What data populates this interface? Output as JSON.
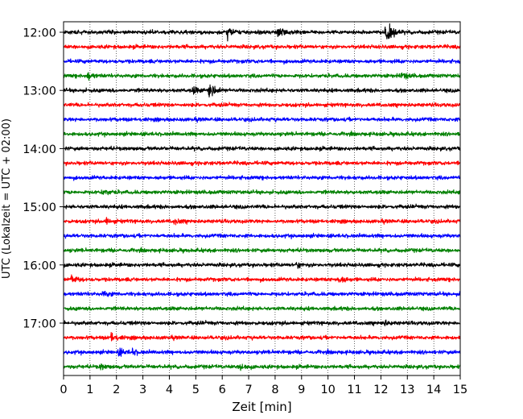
{
  "chart_data": {
    "type": "line",
    "title": "",
    "xlabel": "Zeit  [min]",
    "ylabel": "UTC (Lokalzeit = UTC + 02:00)",
    "xlim": [
      0,
      15
    ],
    "x_ticks": [
      0,
      1,
      2,
      3,
      4,
      5,
      6,
      7,
      8,
      9,
      10,
      11,
      12,
      13,
      14,
      15
    ],
    "x_tick_labels": [
      "0",
      "1",
      "2",
      "3",
      "4",
      "5",
      "6",
      "7",
      "8",
      "9",
      "10",
      "11",
      "12",
      "13",
      "14",
      "15"
    ],
    "y_tick_labels": [
      "12:00",
      "13:00",
      "14:00",
      "15:00",
      "16:00",
      "17:00"
    ],
    "y_tick_traces": [
      0,
      4,
      8,
      12,
      16,
      20
    ],
    "trace_minutes": 15,
    "grid_x": true,
    "grid_style": "dotted",
    "colors": [
      "#000000",
      "#ff0000",
      "#0000ff",
      "#008000"
    ],
    "series": [
      {
        "start": "12:00",
        "events": [
          {
            "t": 6.2,
            "amp": 7
          },
          {
            "t": 8.1,
            "amp": 6
          },
          {
            "t": 12.2,
            "amp": 14
          }
        ]
      },
      {
        "start": "12:15",
        "events": []
      },
      {
        "start": "12:30",
        "events": []
      },
      {
        "start": "12:45",
        "events": [
          {
            "t": 0.9,
            "amp": 5
          },
          {
            "t": 12.8,
            "amp": 4
          }
        ]
      },
      {
        "start": "13:00",
        "events": [
          {
            "t": 5.5,
            "amp": 12
          },
          {
            "t": 4.9,
            "amp": 4
          }
        ]
      },
      {
        "start": "13:15",
        "events": []
      },
      {
        "start": "13:30",
        "events": []
      },
      {
        "start": "13:45",
        "events": []
      },
      {
        "start": "14:00",
        "events": []
      },
      {
        "start": "14:15",
        "events": []
      },
      {
        "start": "14:30",
        "events": []
      },
      {
        "start": "14:45",
        "events": [
          {
            "t": 1.5,
            "amp": 4
          }
        ]
      },
      {
        "start": "15:00",
        "events": []
      },
      {
        "start": "15:15",
        "events": [
          {
            "t": 1.6,
            "amp": 4
          },
          {
            "t": 4.2,
            "amp": 3
          }
        ]
      },
      {
        "start": "15:30",
        "events": []
      },
      {
        "start": "15:45",
        "events": []
      },
      {
        "start": "16:00",
        "events": [
          {
            "t": 8.8,
            "amp": 3
          }
        ]
      },
      {
        "start": "16:15",
        "events": [
          {
            "t": 0.3,
            "amp": 5
          },
          {
            "t": 10.4,
            "amp": 6
          }
        ]
      },
      {
        "start": "16:30",
        "events": [
          {
            "t": 1.5,
            "amp": 3
          }
        ]
      },
      {
        "start": "16:45",
        "events": []
      },
      {
        "start": "17:00",
        "events": [
          {
            "t": 12.1,
            "amp": 3
          }
        ]
      },
      {
        "start": "17:15",
        "events": [
          {
            "t": 1.8,
            "amp": 6
          }
        ]
      },
      {
        "start": "17:30",
        "events": [
          {
            "t": 2.1,
            "amp": 4
          },
          {
            "t": 2.6,
            "amp": 3
          }
        ]
      },
      {
        "start": "17:45",
        "events": [
          {
            "t": 6.7,
            "amp": 5
          },
          {
            "t": 1.4,
            "amp": 3
          }
        ]
      }
    ]
  }
}
